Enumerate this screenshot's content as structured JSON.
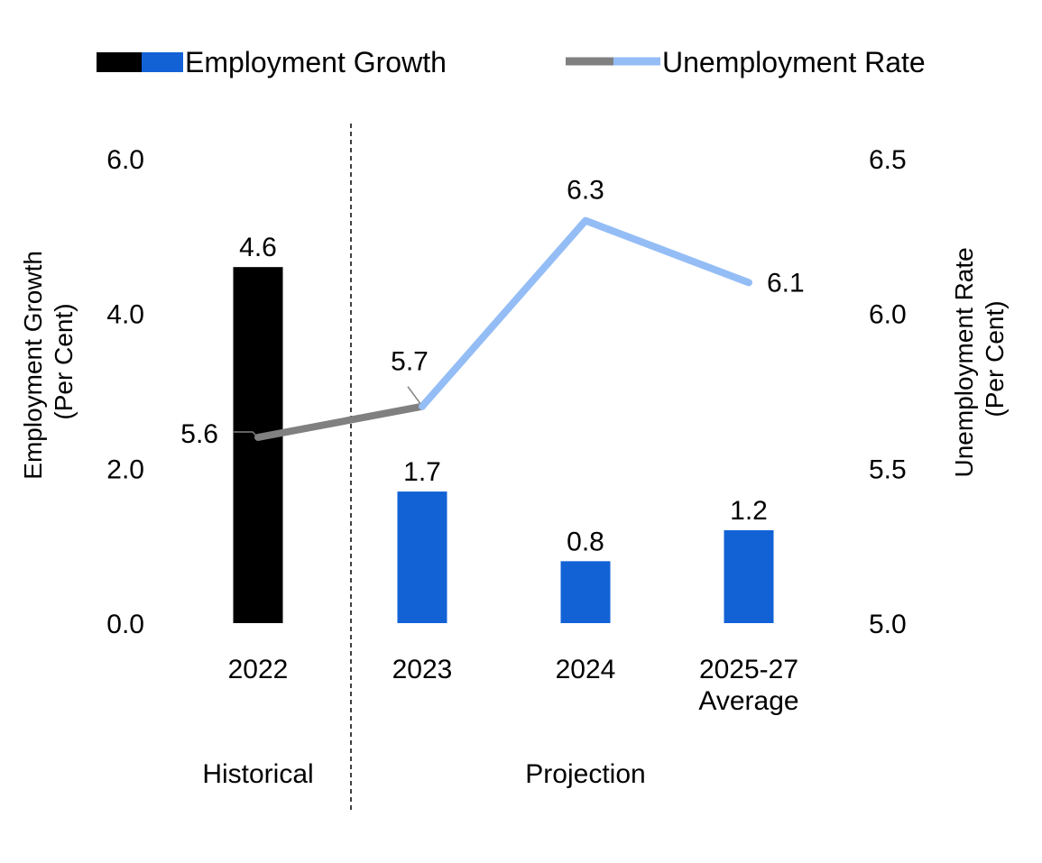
{
  "colors": {
    "historical_bar": "#000000",
    "projection_bar": "#1262D6",
    "historical_line": "#808080",
    "projection_line": "#94BDF6",
    "divider": "#000000"
  },
  "legend": {
    "employment_growth": "Employment Growth",
    "unemployment_rate": "Unemployment Rate"
  },
  "chart_data": {
    "type": "bar",
    "categories": [
      "2022",
      "2023",
      "2024",
      "2025-27 Average"
    ],
    "category_lines": [
      [
        "2022"
      ],
      [
        "2023"
      ],
      [
        "2024"
      ],
      [
        "2025-27",
        "Average"
      ]
    ],
    "series": [
      {
        "name": "Employment Growth",
        "type": "bar",
        "axis": "left",
        "values": [
          4.6,
          1.7,
          0.8,
          1.2
        ],
        "labels": [
          "4.6",
          "1.7",
          "0.8",
          "1.2"
        ]
      },
      {
        "name": "Unemployment Rate",
        "type": "line",
        "axis": "right",
        "values": [
          5.6,
          5.7,
          6.3,
          6.1
        ],
        "labels": [
          "5.6",
          "5.7",
          "6.3",
          "6.1"
        ]
      }
    ],
    "left_axis": {
      "label_lines": [
        "Employment Growth",
        "(Per Cent)"
      ],
      "ylim": [
        0,
        6
      ],
      "ticks": [
        "0.0",
        "2.0",
        "4.0",
        "6.0"
      ]
    },
    "right_axis": {
      "label_lines": [
        "Unemployment Rate",
        "(Per Cent)"
      ],
      "ylim": [
        5.0,
        6.5
      ],
      "ticks": [
        "5.0",
        "5.5",
        "6.0",
        "6.5"
      ]
    },
    "periods": {
      "historical": "Historical",
      "projection": "Projection"
    },
    "grid": false,
    "legend_position": "top"
  }
}
